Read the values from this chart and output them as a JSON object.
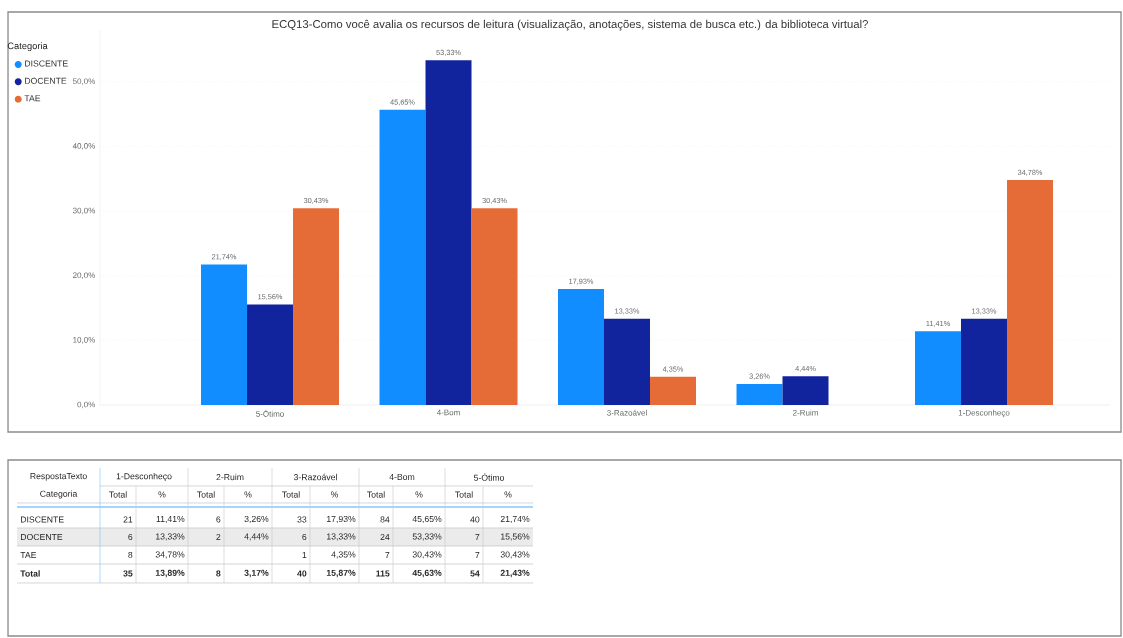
{
  "chart_data": {
    "type": "bar",
    "title": "ECQ13-Como você avalia os recursos de leitura (visualização, anotações, sistema de busca etc.) da biblioteca virtual?",
    "legend_title": "Categoria",
    "categories": [
      "5-Ótimo",
      "4-Bom",
      "3-Razoável",
      "2-Ruim",
      "1-Desconheço"
    ],
    "series": [
      {
        "name": "DISCENTE",
        "color": "#118dff",
        "values": [
          21.74,
          45.65,
          17.93,
          3.26,
          11.41
        ],
        "value_labels": [
          "21,74%",
          "45,65%",
          "17,93%",
          "3,26%",
          "11,41%"
        ]
      },
      {
        "name": "DOCENTE",
        "color": "#12239e",
        "values": [
          15.56,
          53.33,
          13.33,
          4.44,
          13.33
        ],
        "value_labels": [
          "15,56%",
          "53,33%",
          "13,33%",
          "4,44%",
          "13,33%"
        ]
      },
      {
        "name": "TAE",
        "color": "#e66c37",
        "values": [
          30.43,
          30.43,
          4.35,
          null,
          34.78
        ],
        "value_labels": [
          "30,43%",
          "30,43%",
          "4,35%",
          null,
          "34,78%"
        ]
      }
    ],
    "ylim": [
      0,
      58
    ],
    "yticks": [
      {
        "value": 0,
        "label": "0,0%"
      },
      {
        "value": 10,
        "label": "10,0%"
      },
      {
        "value": 20,
        "label": "20,0%"
      },
      {
        "value": 30,
        "label": "30,0%"
      },
      {
        "value": 40,
        "label": "40,0%"
      },
      {
        "value": 50,
        "label": "50,0%"
      }
    ],
    "grid": "y",
    "legend": "top left",
    "annotations": [
      "RespostaTexto",
      "1-Desconheço",
      "2-Ruim",
      "3-Razoável",
      "4-Bom",
      "5-Ótimo",
      "Categoria",
      "Total",
      "%",
      "Total",
      "%",
      "Total",
      "%",
      "Total",
      "%",
      "Total",
      "%",
      "DISCENTE",
      "21",
      "11,41%",
      "6",
      "3,26%",
      "33",
      "17,93%",
      "84",
      "45,65%",
      "40",
      "21,74%",
      "DOCENTE",
      "6",
      "13,33%",
      "2",
      "4,44%",
      "6",
      "13,33%",
      "24",
      "53,33%",
      "7",
      "15,56%",
      "TAE",
      "8",
      "34,78%",
      "1",
      "4,35%",
      "7",
      "30,43%",
      "7",
      "30,43%",
      "Total",
      "35",
      "13,89%",
      "8",
      "3,17%",
      "40",
      "15,87%",
      "115",
      "45,63%",
      "54",
      "21,43%"
    ]
  }
}
